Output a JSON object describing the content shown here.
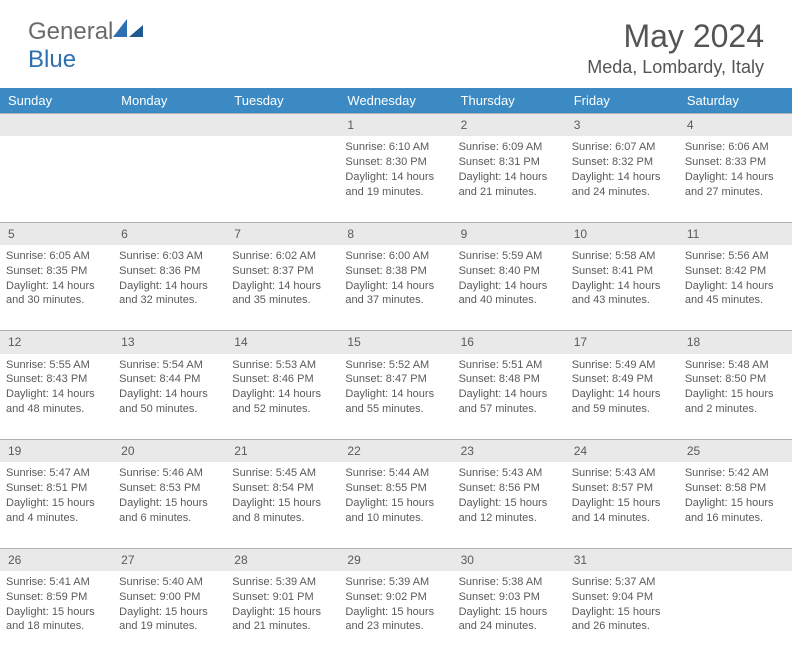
{
  "brand": {
    "part1": "General",
    "part2": "Blue"
  },
  "title": "May 2024",
  "location": "Meda, Lombardy, Italy",
  "colors": {
    "header_bg": "#3b8ac4",
    "header_text": "#ffffff",
    "daynum_bg": "#e9e9e9",
    "body_text": "#5a5a5a",
    "divider": "#b0b0b0",
    "brand_gray": "#6a6a6a",
    "brand_blue": "#2d6fb0",
    "background": "#ffffff"
  },
  "fonts": {
    "title_size_pt": 24,
    "location_size_pt": 14,
    "weekday_size_pt": 10,
    "daynum_size_pt": 9,
    "cell_size_pt": 8
  },
  "weekdays": [
    "Sunday",
    "Monday",
    "Tuesday",
    "Wednesday",
    "Thursday",
    "Friday",
    "Saturday"
  ],
  "weeks": [
    {
      "nums": [
        "",
        "",
        "",
        "1",
        "2",
        "3",
        "4"
      ],
      "cells": [
        null,
        null,
        null,
        {
          "sunrise": "Sunrise: 6:10 AM",
          "sunset": "Sunset: 8:30 PM",
          "day1": "Daylight: 14 hours",
          "day2": "and 19 minutes."
        },
        {
          "sunrise": "Sunrise: 6:09 AM",
          "sunset": "Sunset: 8:31 PM",
          "day1": "Daylight: 14 hours",
          "day2": "and 21 minutes."
        },
        {
          "sunrise": "Sunrise: 6:07 AM",
          "sunset": "Sunset: 8:32 PM",
          "day1": "Daylight: 14 hours",
          "day2": "and 24 minutes."
        },
        {
          "sunrise": "Sunrise: 6:06 AM",
          "sunset": "Sunset: 8:33 PM",
          "day1": "Daylight: 14 hours",
          "day2": "and 27 minutes."
        }
      ]
    },
    {
      "nums": [
        "5",
        "6",
        "7",
        "8",
        "9",
        "10",
        "11"
      ],
      "cells": [
        {
          "sunrise": "Sunrise: 6:05 AM",
          "sunset": "Sunset: 8:35 PM",
          "day1": "Daylight: 14 hours",
          "day2": "and 30 minutes."
        },
        {
          "sunrise": "Sunrise: 6:03 AM",
          "sunset": "Sunset: 8:36 PM",
          "day1": "Daylight: 14 hours",
          "day2": "and 32 minutes."
        },
        {
          "sunrise": "Sunrise: 6:02 AM",
          "sunset": "Sunset: 8:37 PM",
          "day1": "Daylight: 14 hours",
          "day2": "and 35 minutes."
        },
        {
          "sunrise": "Sunrise: 6:00 AM",
          "sunset": "Sunset: 8:38 PM",
          "day1": "Daylight: 14 hours",
          "day2": "and 37 minutes."
        },
        {
          "sunrise": "Sunrise: 5:59 AM",
          "sunset": "Sunset: 8:40 PM",
          "day1": "Daylight: 14 hours",
          "day2": "and 40 minutes."
        },
        {
          "sunrise": "Sunrise: 5:58 AM",
          "sunset": "Sunset: 8:41 PM",
          "day1": "Daylight: 14 hours",
          "day2": "and 43 minutes."
        },
        {
          "sunrise": "Sunrise: 5:56 AM",
          "sunset": "Sunset: 8:42 PM",
          "day1": "Daylight: 14 hours",
          "day2": "and 45 minutes."
        }
      ]
    },
    {
      "nums": [
        "12",
        "13",
        "14",
        "15",
        "16",
        "17",
        "18"
      ],
      "cells": [
        {
          "sunrise": "Sunrise: 5:55 AM",
          "sunset": "Sunset: 8:43 PM",
          "day1": "Daylight: 14 hours",
          "day2": "and 48 minutes."
        },
        {
          "sunrise": "Sunrise: 5:54 AM",
          "sunset": "Sunset: 8:44 PM",
          "day1": "Daylight: 14 hours",
          "day2": "and 50 minutes."
        },
        {
          "sunrise": "Sunrise: 5:53 AM",
          "sunset": "Sunset: 8:46 PM",
          "day1": "Daylight: 14 hours",
          "day2": "and 52 minutes."
        },
        {
          "sunrise": "Sunrise: 5:52 AM",
          "sunset": "Sunset: 8:47 PM",
          "day1": "Daylight: 14 hours",
          "day2": "and 55 minutes."
        },
        {
          "sunrise": "Sunrise: 5:51 AM",
          "sunset": "Sunset: 8:48 PM",
          "day1": "Daylight: 14 hours",
          "day2": "and 57 minutes."
        },
        {
          "sunrise": "Sunrise: 5:49 AM",
          "sunset": "Sunset: 8:49 PM",
          "day1": "Daylight: 14 hours",
          "day2": "and 59 minutes."
        },
        {
          "sunrise": "Sunrise: 5:48 AM",
          "sunset": "Sunset: 8:50 PM",
          "day1": "Daylight: 15 hours",
          "day2": "and 2 minutes."
        }
      ]
    },
    {
      "nums": [
        "19",
        "20",
        "21",
        "22",
        "23",
        "24",
        "25"
      ],
      "cells": [
        {
          "sunrise": "Sunrise: 5:47 AM",
          "sunset": "Sunset: 8:51 PM",
          "day1": "Daylight: 15 hours",
          "day2": "and 4 minutes."
        },
        {
          "sunrise": "Sunrise: 5:46 AM",
          "sunset": "Sunset: 8:53 PM",
          "day1": "Daylight: 15 hours",
          "day2": "and 6 minutes."
        },
        {
          "sunrise": "Sunrise: 5:45 AM",
          "sunset": "Sunset: 8:54 PM",
          "day1": "Daylight: 15 hours",
          "day2": "and 8 minutes."
        },
        {
          "sunrise": "Sunrise: 5:44 AM",
          "sunset": "Sunset: 8:55 PM",
          "day1": "Daylight: 15 hours",
          "day2": "and 10 minutes."
        },
        {
          "sunrise": "Sunrise: 5:43 AM",
          "sunset": "Sunset: 8:56 PM",
          "day1": "Daylight: 15 hours",
          "day2": "and 12 minutes."
        },
        {
          "sunrise": "Sunrise: 5:43 AM",
          "sunset": "Sunset: 8:57 PM",
          "day1": "Daylight: 15 hours",
          "day2": "and 14 minutes."
        },
        {
          "sunrise": "Sunrise: 5:42 AM",
          "sunset": "Sunset: 8:58 PM",
          "day1": "Daylight: 15 hours",
          "day2": "and 16 minutes."
        }
      ]
    },
    {
      "nums": [
        "26",
        "27",
        "28",
        "29",
        "30",
        "31",
        ""
      ],
      "cells": [
        {
          "sunrise": "Sunrise: 5:41 AM",
          "sunset": "Sunset: 8:59 PM",
          "day1": "Daylight: 15 hours",
          "day2": "and 18 minutes."
        },
        {
          "sunrise": "Sunrise: 5:40 AM",
          "sunset": "Sunset: 9:00 PM",
          "day1": "Daylight: 15 hours",
          "day2": "and 19 minutes."
        },
        {
          "sunrise": "Sunrise: 5:39 AM",
          "sunset": "Sunset: 9:01 PM",
          "day1": "Daylight: 15 hours",
          "day2": "and 21 minutes."
        },
        {
          "sunrise": "Sunrise: 5:39 AM",
          "sunset": "Sunset: 9:02 PM",
          "day1": "Daylight: 15 hours",
          "day2": "and 23 minutes."
        },
        {
          "sunrise": "Sunrise: 5:38 AM",
          "sunset": "Sunset: 9:03 PM",
          "day1": "Daylight: 15 hours",
          "day2": "and 24 minutes."
        },
        {
          "sunrise": "Sunrise: 5:37 AM",
          "sunset": "Sunset: 9:04 PM",
          "day1": "Daylight: 15 hours",
          "day2": "and 26 minutes."
        },
        null
      ]
    }
  ]
}
